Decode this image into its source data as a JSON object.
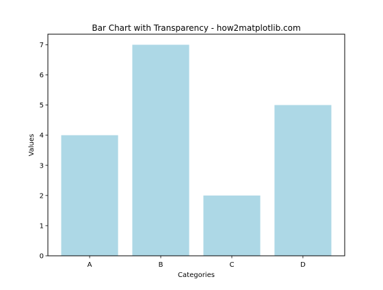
{
  "chart_data": {
    "type": "bar",
    "title": "Bar Chart with Transparency - how2matplotlib.com",
    "xlabel": "Categories",
    "ylabel": "Values",
    "categories": [
      "A",
      "B",
      "C",
      "D"
    ],
    "values": [
      4,
      7,
      2,
      5
    ],
    "ylim": [
      0,
      7.35
    ],
    "yticks": [
      0,
      1,
      2,
      3,
      4,
      5,
      6,
      7
    ],
    "bar_color": "#add8e6",
    "bar_alpha": 0.7,
    "grid": false,
    "legend": "none"
  }
}
